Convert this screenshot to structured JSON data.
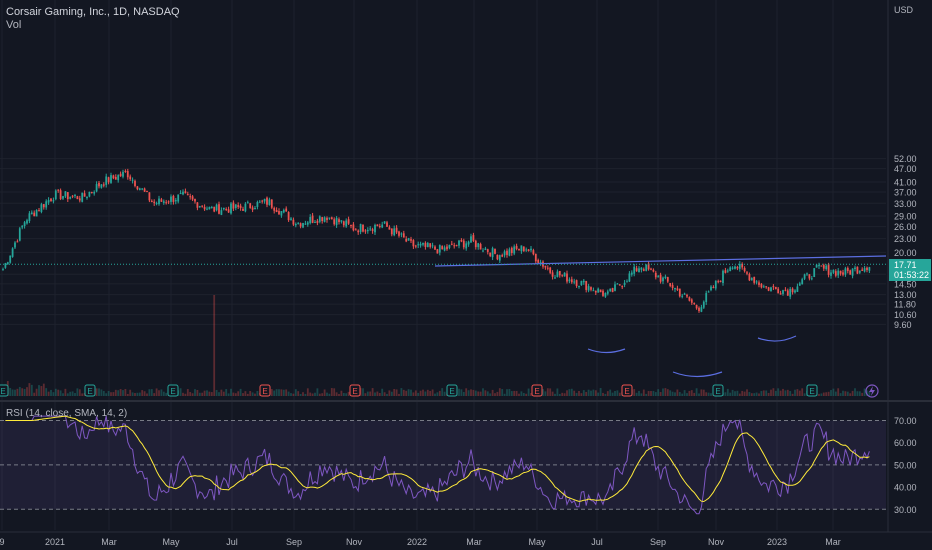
{
  "header": {
    "title": "Corsair Gaming, Inc., 1D, NASDAQ",
    "vol_label": "Vol",
    "currency": "USD"
  },
  "price_tag": {
    "price": "17.71",
    "countdown": "01:53:22"
  },
  "indicator": {
    "label": "RSI (14, close, SMA, 14, 2)"
  },
  "colors": {
    "background": "#131722",
    "up": "#26a69a",
    "down": "#ef5350",
    "trendline": "#5b6ee1",
    "rsi_line": "#7e57c2",
    "rsi_sma": "#ffeb3b",
    "rsi_band": "#7e57c2"
  },
  "chart_data": [
    {
      "type": "candlestick",
      "title": "Corsair Gaming, Inc., 1D, NASDAQ",
      "y_scale": "log",
      "ylim": [
        9.6,
        56
      ],
      "y_ticks": [
        "52.00",
        "47.00",
        "41.00",
        "37.00",
        "33.00",
        "29.00",
        "26.00",
        "23.00",
        "20.00",
        "16.00",
        "14.50",
        "13.00",
        "11.80",
        "10.60",
        "9.60"
      ],
      "x_ticks": [
        "9",
        "2021",
        "Mar",
        "May",
        "Jul",
        "Sep",
        "Nov",
        "2022",
        "Mar",
        "May",
        "Jul",
        "Sep",
        "Nov",
        "2023",
        "Mar"
      ],
      "approx_close_path": [
        {
          "date": "2020-09-25",
          "close": 16.5
        },
        {
          "date": "2020-10-20",
          "close": 28.0
        },
        {
          "date": "2020-11-20",
          "close": 36.0
        },
        {
          "date": "2020-12-20",
          "close": 35.0
        },
        {
          "date": "2021-01-10",
          "close": 41.0
        },
        {
          "date": "2021-02-05",
          "close": 45.0
        },
        {
          "date": "2021-03-05",
          "close": 33.0
        },
        {
          "date": "2021-04-05",
          "close": 35.5
        },
        {
          "date": "2021-05-05",
          "close": 31.0
        },
        {
          "date": "2021-06-05",
          "close": 31.5
        },
        {
          "date": "2021-07-05",
          "close": 33.5
        },
        {
          "date": "2021-08-05",
          "close": 27.0
        },
        {
          "date": "2021-09-05",
          "close": 29.0
        },
        {
          "date": "2021-10-05",
          "close": 25.5
        },
        {
          "date": "2021-11-05",
          "close": 26.5
        },
        {
          "date": "2021-12-05",
          "close": 21.5
        },
        {
          "date": "2022-01-05",
          "close": 20.5
        },
        {
          "date": "2022-02-05",
          "close": 22.5
        },
        {
          "date": "2022-03-05",
          "close": 19.5
        },
        {
          "date": "2022-04-05",
          "close": 21.0
        },
        {
          "date": "2022-05-01",
          "close": 16.5
        },
        {
          "date": "2022-06-05",
          "close": 14.5
        },
        {
          "date": "2022-07-01",
          "close": 12.9
        },
        {
          "date": "2022-08-05",
          "close": 17.5
        },
        {
          "date": "2022-09-05",
          "close": 14.5
        },
        {
          "date": "2022-10-05",
          "close": 11.3
        },
        {
          "date": "2022-11-10",
          "close": 18.0
        },
        {
          "date": "2022-12-15",
          "close": 14.0
        },
        {
          "date": "2023-01-10",
          "close": 13.5
        },
        {
          "date": "2023-02-10",
          "close": 17.0
        },
        {
          "date": "2023-03-10",
          "close": 16.2
        },
        {
          "date": "2023-04-07",
          "close": 17.71
        }
      ],
      "annotations": [
        "neckline trendline ~17.7",
        "inverse head and shoulders arcs"
      ],
      "events": [
        "E",
        "E",
        "E",
        "E",
        "E",
        "E",
        "E",
        "E",
        "E",
        "E",
        "E",
        "E",
        "E"
      ]
    },
    {
      "type": "line",
      "title": "RSI (14, close, SMA, 14, 2)",
      "ylim": [
        25,
        75
      ],
      "y_ticks": [
        "70.00",
        "60.00",
        "50.00",
        "40.00",
        "30.00"
      ],
      "bands": [
        30,
        50,
        70
      ],
      "series": [
        {
          "name": "RSI"
        },
        {
          "name": "SMA"
        }
      ]
    }
  ]
}
